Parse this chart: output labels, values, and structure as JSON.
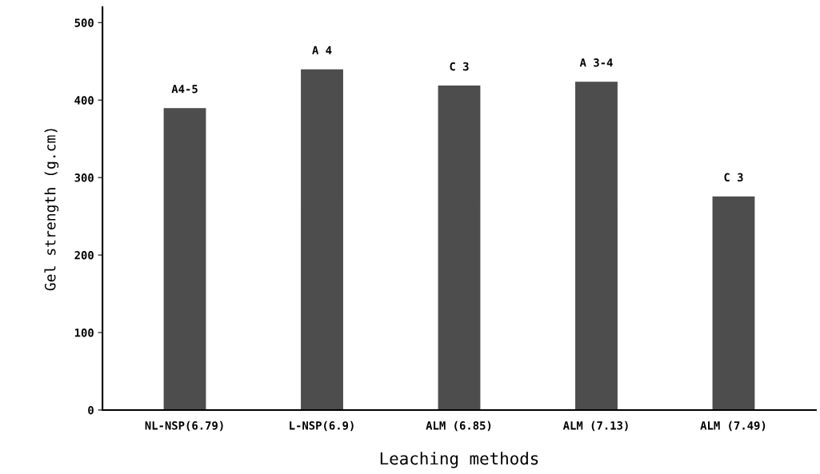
{
  "chart_data": {
    "type": "bar",
    "xlabel": "Leaching methods",
    "ylabel": "Gel strength (g.cm)",
    "categories": [
      "NL-NSP(6.79)",
      "L-NSP(6.9)",
      "ALM (6.85)",
      "ALM (7.13)",
      "ALM (7.49)"
    ],
    "values": [
      389,
      439,
      418,
      423,
      275
    ],
    "color": "#4d4d4d",
    "ylim": [
      0,
      520
    ],
    "yticks": [
      0,
      100,
      200,
      300,
      400,
      500
    ],
    "grid": false,
    "annotations": [
      {
        "text": "A4-5",
        "x": "NL-NSP(6.79)",
        "y": 389
      },
      {
        "text": "A 4",
        "x": "L-NSP(6.9)",
        "y": 439
      },
      {
        "text": "C 3",
        "x": "ALM (6.85)",
        "y": 418
      },
      {
        "text": "A 3-4",
        "x": "ALM (7.13)",
        "y": 423
      },
      {
        "text": "C 3",
        "x": "ALM (7.49)",
        "y": 275
      }
    ]
  }
}
